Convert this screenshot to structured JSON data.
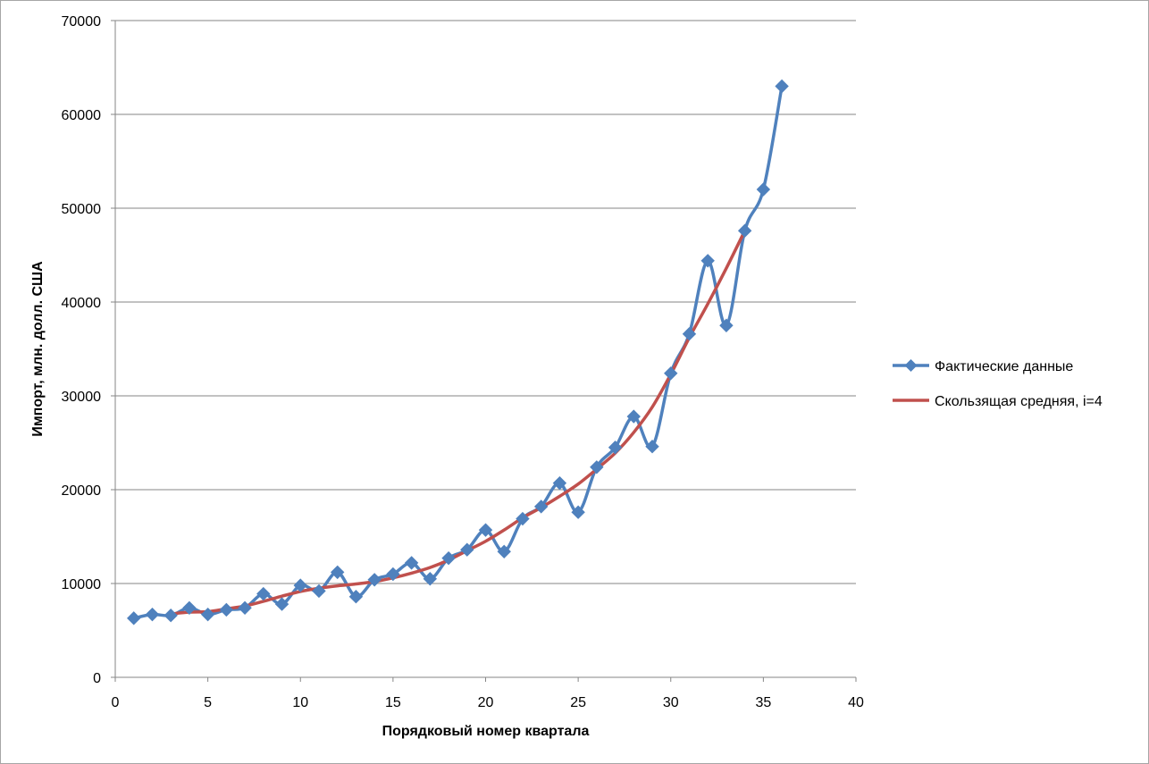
{
  "chart_data": {
    "type": "line",
    "xlabel": "Порядковый номер квартала",
    "ylabel": "Импорт, млн. долл. США",
    "xlim": [
      0,
      40
    ],
    "ylim": [
      0,
      70000
    ],
    "xticks": [
      0,
      5,
      10,
      15,
      20,
      25,
      30,
      35,
      40
    ],
    "yticks": [
      0,
      10000,
      20000,
      30000,
      40000,
      50000,
      60000,
      70000
    ],
    "grid": "horizontal",
    "legend_position": "right",
    "series": [
      {
        "name": "Фактические данные",
        "color": "#4f81bd",
        "marker": "diamond",
        "x": [
          1,
          2,
          3,
          4,
          5,
          6,
          7,
          8,
          9,
          10,
          11,
          12,
          13,
          14,
          15,
          16,
          17,
          18,
          19,
          20,
          21,
          22,
          23,
          24,
          25,
          26,
          27,
          28,
          29,
          30,
          31,
          32,
          33,
          34,
          35,
          36
        ],
        "values": [
          6300,
          6700,
          6600,
          7400,
          6700,
          7200,
          7400,
          8900,
          7800,
          9800,
          9200,
          11200,
          8600,
          10400,
          11000,
          12200,
          10500,
          12700,
          13600,
          15700,
          13400,
          16900,
          18200,
          20700,
          17600,
          22400,
          24500,
          27800,
          24600,
          32400,
          36600,
          44400,
          37500,
          47600,
          52000,
          63000
        ]
      },
      {
        "name": "Скользящая средняя, i=4",
        "color": "#c0504d",
        "marker": "none",
        "x": [
          3,
          4,
          5,
          6,
          7,
          8,
          9,
          10,
          11,
          12,
          13,
          14,
          15,
          16,
          17,
          18,
          19,
          20,
          21,
          22,
          23,
          24,
          25,
          26,
          27,
          28,
          29,
          30,
          31,
          32,
          33,
          34
        ],
        "values": [
          6750,
          6950,
          7000,
          7300,
          7600,
          8100,
          8650,
          9150,
          9500,
          9750,
          9950,
          10200,
          10600,
          11100,
          11700,
          12500,
          13500,
          14500,
          15700,
          17000,
          18100,
          19300,
          20600,
          22200,
          23900,
          26100,
          28800,
          32300,
          36200,
          39800,
          43600,
          47600
        ]
      }
    ]
  }
}
